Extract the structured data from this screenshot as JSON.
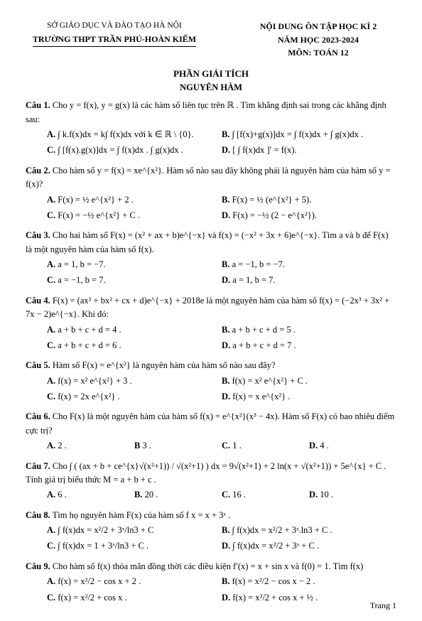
{
  "header": {
    "left_line1": "SỞ GIÁO DỤC VÀ ĐÀO TẠO HÀ NỘI",
    "left_line2": "TRƯỜNG THPT TRẦN PHÚ-HOÀN KIẾM",
    "right_line1": "NỘI DUNG ÔN TẬP HỌC KÌ 2",
    "right_line2": "NĂM HỌC 2023-2024",
    "right_line3": "MÔN: TOÁN 12"
  },
  "section_title": "PHẦN GIẢI TÍCH",
  "sub_title": "NGUYÊN HÀM",
  "questions": [
    {
      "label": "Câu 1.",
      "text": "Cho y = f(x), y = g(x) là các hàm số liên tục trên ℝ . Tìm khẳng định sai trong các khẳng định sau:",
      "options": [
        {
          "label": "A.",
          "text": "∫ k.f(x)dx = k∫ f(x)dx với k ∈ ℝ \\ {0}."
        },
        {
          "label": "B.",
          "text": "∫ [f(x)+g(x)]dx = ∫ f(x)dx + ∫ g(x)dx ."
        },
        {
          "label": "C.",
          "text": "∫ [f(x).g(x)]dx = ∫ f(x)dx . ∫ g(x)dx ."
        },
        {
          "label": "D.",
          "text": "[ ∫ f(x)dx ]′ = f(x)."
        }
      ],
      "layout": "2col"
    },
    {
      "label": "Câu 2.",
      "text": "Cho hàm số y = f(x) = xe^{x²}. Hàm số nào sau đây không phải là nguyên hàm của hàm số y = f(x)?",
      "options": [
        {
          "label": "A.",
          "text": "F(x) = ½ e^{x²} + 2 ."
        },
        {
          "label": "B.",
          "text": "F(x) = ½ (e^{x²} + 5)."
        },
        {
          "label": "C.",
          "text": "F(x) = −½ e^{x²} + C ."
        },
        {
          "label": "D.",
          "text": "F(x) = −½ (2 − e^{x²})."
        }
      ],
      "layout": "2col"
    },
    {
      "label": "Câu 3.",
      "text": "Cho hai hàm số F(x) = (x² + ax + b)e^{−x} và f(x) = (−x² + 3x + 6)e^{−x}. Tìm a và b để F(x) là một nguyên hàm của hàm số f(x).",
      "options": [
        {
          "label": "A.",
          "text": "a = 1, b = −7."
        },
        {
          "label": "B.",
          "text": "a = −1, b = −7."
        },
        {
          "label": "C.",
          "text": "a = −1, b = 7."
        },
        {
          "label": "D.",
          "text": "a = 1, b = 7."
        }
      ],
      "layout": "2col"
    },
    {
      "label": "Câu 4.",
      "text": "F(x) = (ax³ + bx² + cx + d)e^{−x} + 2018e   là   một   nguyên   hàm   của   hàm   số f(x) = (−2x³ + 3x² + 7x − 2)e^{−x}. Khi đó:",
      "options": [
        {
          "label": "A.",
          "text": "a + b + c + d = 4 ."
        },
        {
          "label": "B.",
          "text": "a + b + c + d = 5 ."
        },
        {
          "label": "C.",
          "text": "a + b + c + d = 6 ."
        },
        {
          "label": "D.",
          "text": "a + b + c + d = 7 ."
        }
      ],
      "layout": "2col"
    },
    {
      "label": "Câu 5.",
      "text": "Hàm số F(x) = e^{x²} là nguyên hàm của hàm số nào sau đây?",
      "options": [
        {
          "label": "A.",
          "text": "f(x) = x² e^{x²} + 3 ."
        },
        {
          "label": "B.",
          "text": "f(x) = x² e^{x²} + C ."
        },
        {
          "label": "C.",
          "text": "f(x) = 2x e^{x²} ."
        },
        {
          "label": "D.",
          "text": "f(x) = x e^{x²} ."
        }
      ],
      "layout": "2col"
    },
    {
      "label": "Câu 6.",
      "text": "Cho F(x) là một nguyên hàm của hàm số f(x) = e^{x²}(x³ − 4x). Hàm số F(x) có bao nhiêu điểm cực trị?",
      "options": [
        {
          "label": "A.",
          "text": "2 ."
        },
        {
          "label": "B",
          "text": "3 ."
        },
        {
          "label": "C.",
          "text": "1 ."
        },
        {
          "label": "D.",
          "text": "4 ."
        }
      ],
      "layout": "4col"
    },
    {
      "label": "Câu 7.",
      "text": "Cho  ∫ ( (ax + b + ce^{x}√(x²+1)) / √(x²+1) ) dx = 9√(x²+1) + 2 ln(x + √(x²+1)) + 5e^{x} + C .  Tính  giá  trị  biểu  thức  M = a + b + c .",
      "options": [
        {
          "label": "A.",
          "text": "6 ."
        },
        {
          "label": "B.",
          "text": "20 ."
        },
        {
          "label": "C.",
          "text": "16 ."
        },
        {
          "label": "D.",
          "text": "10 ."
        }
      ],
      "layout": "4col"
    },
    {
      "label": "Câu 8.",
      "text": "Tìm họ nguyên hàm F(x) của hàm số f  x  = x + 3ˣ .",
      "options": [
        {
          "label": "A.",
          "text": "∫ f(x)dx = x²/2 + 3ˣ/ln3 + C"
        },
        {
          "label": "B.",
          "text": "∫ f(x)dx = x²/2 + 3ˣ.ln3 + C ."
        },
        {
          "label": "C.",
          "text": "∫ f(x)dx = 1 + 3ˣ/ln3 + C ."
        },
        {
          "label": "D.",
          "text": "∫ f(x)dx = x²/2 + 3ˣ + C ."
        }
      ],
      "layout": "2col"
    },
    {
      "label": "Câu 9.",
      "text": "Cho hàm số f(x) thỏa mãn đồng thời các điều kiện f′(x) = x + sin x và f(0) = 1. Tìm f(x)",
      "options": [
        {
          "label": "A.",
          "text": "f(x) = x²/2 − cos x + 2 ."
        },
        {
          "label": "B.",
          "text": "f(x) = x²/2 − cos x − 2 ."
        },
        {
          "label": "C.",
          "text": "f(x) = x²/2 + cos x ."
        },
        {
          "label": "D.",
          "text": "f(x) = x²/2 + cos x + ½ ."
        }
      ],
      "layout": "2col"
    }
  ],
  "page_num": "Trang 1",
  "colors": {
    "text": "#000000",
    "background": "#ffffff"
  },
  "typography": {
    "body_fontsize_pt": 10,
    "header_fontsize_pt": 10,
    "font_family": "Times New Roman"
  }
}
